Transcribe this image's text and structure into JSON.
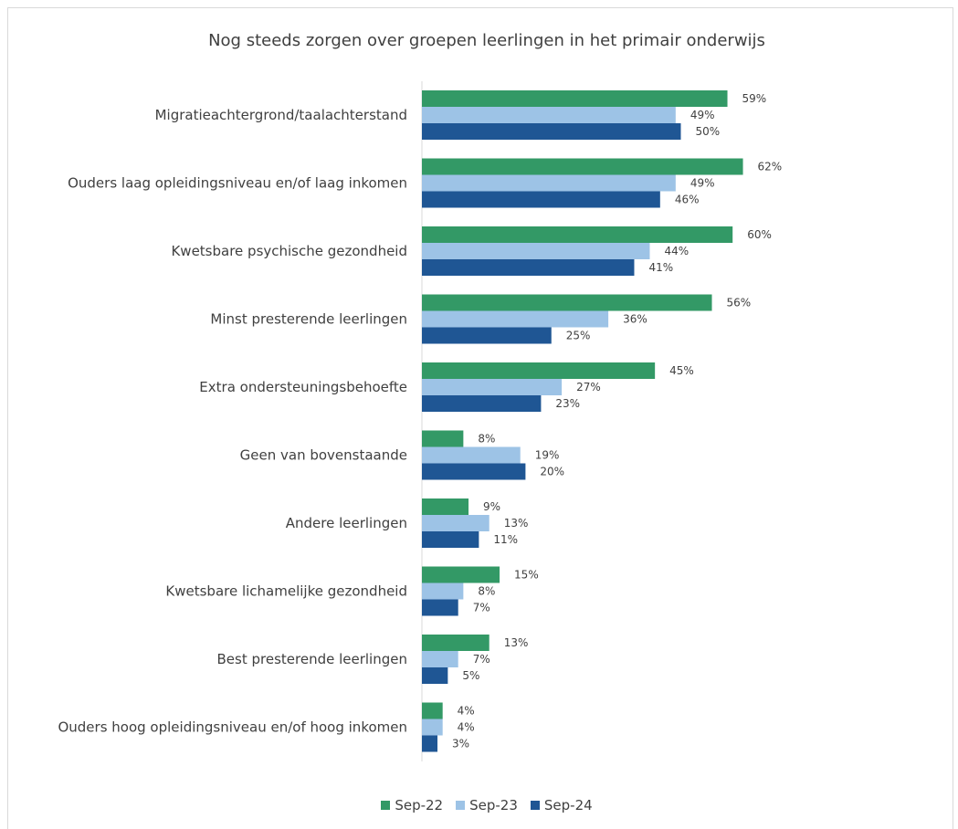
{
  "chart_data": {
    "type": "bar",
    "orientation": "horizontal",
    "title": "Nog steeds zorgen over groepen leerlingen in het primair onderwijs",
    "categories": [
      "Migratieachtergrond/taalachterstand",
      "Ouders laag opleidingsniveau en/of laag inkomen",
      "Kwetsbare psychische gezondheid",
      "Minst presterende leerlingen",
      "Extra ondersteuningsbehoefte",
      "Geen van bovenstaande",
      "Andere leerlingen",
      "Kwetsbare lichamelijke gezondheid",
      "Best presterende leerlingen",
      "Ouders hoog opleidingsniveau en/of hoog inkomen"
    ],
    "series": [
      {
        "name": "Sep-22",
        "color": "#339966",
        "values": [
          59,
          62,
          60,
          56,
          45,
          8,
          9,
          15,
          13,
          4
        ]
      },
      {
        "name": "Sep-23",
        "color": "#9DC3E6",
        "values": [
          49,
          49,
          44,
          36,
          27,
          19,
          13,
          8,
          7,
          4
        ]
      },
      {
        "name": "Sep-24",
        "color": "#1F5694",
        "values": [
          50,
          46,
          41,
          25,
          23,
          20,
          11,
          7,
          5,
          3
        ]
      }
    ],
    "value_suffix": "%",
    "xlim": [
      0,
      65
    ],
    "grid": false,
    "legend_position": "bottom"
  }
}
